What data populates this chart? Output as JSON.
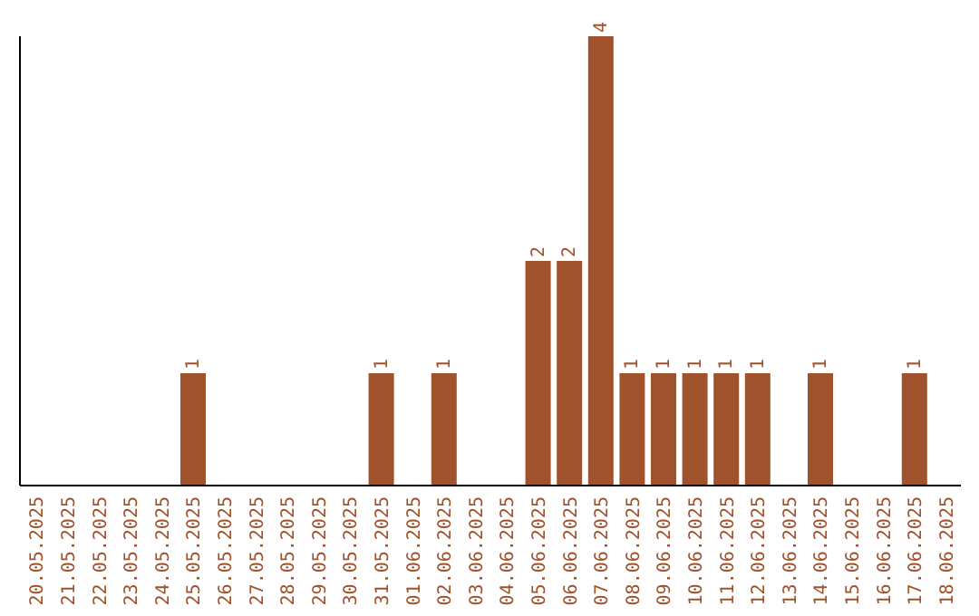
{
  "chart_data": {
    "type": "bar",
    "categories": [
      "20.05.2025",
      "21.05.2025",
      "22.05.2025",
      "23.05.2025",
      "24.05.2025",
      "25.05.2025",
      "26.05.2025",
      "27.05.2025",
      "28.05.2025",
      "29.05.2025",
      "30.05.2025",
      "31.05.2025",
      "01.06.2025",
      "02.06.2025",
      "03.06.2025",
      "04.06.2025",
      "05.06.2025",
      "06.06.2025",
      "07.06.2025",
      "08.06.2025",
      "09.06.2025",
      "10.06.2025",
      "11.06.2025",
      "12.06.2025",
      "13.06.2025",
      "14.06.2025",
      "15.06.2025",
      "16.06.2025",
      "17.06.2025",
      "18.06.2025"
    ],
    "values": [
      0,
      0,
      0,
      0,
      0,
      1,
      0,
      0,
      0,
      0,
      0,
      1,
      0,
      1,
      0,
      0,
      2,
      2,
      4,
      1,
      1,
      1,
      1,
      1,
      0,
      1,
      0,
      0,
      1,
      0
    ],
    "value_labels": [
      null,
      null,
      null,
      null,
      null,
      "1",
      null,
      null,
      null,
      null,
      null,
      "1",
      null,
      "1",
      null,
      null,
      "2",
      "2",
      "4",
      "1",
      "1",
      "1",
      "1",
      "1",
      null,
      "1",
      null,
      null,
      "1",
      null
    ],
    "color": "#a0522d",
    "grid": false,
    "legend": false
  }
}
